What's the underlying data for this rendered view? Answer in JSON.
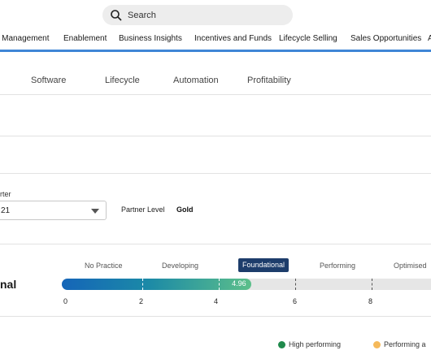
{
  "search": {
    "placeholder": "Search"
  },
  "nav": {
    "items": [
      "r Management",
      "Enablement",
      "Business Insights",
      "Incentives and Funds",
      "Lifecycle Selling",
      "Sales Opportunities",
      "A"
    ]
  },
  "subtabs": [
    "Software",
    "Lifecycle",
    "Automation",
    "Profitability"
  ],
  "filters": {
    "quarter_label": "rter",
    "quarter_value": "21",
    "partner_level_label": "Partner Level",
    "partner_level_value": "Gold"
  },
  "maturity": {
    "stages": [
      "No Practice",
      "Developing",
      "Foundational",
      "Performing",
      "Optimised"
    ],
    "active_stage": "Foundational",
    "row_label": "nal",
    "score": 4.96,
    "score_label": "4.96",
    "axis": {
      "min": 0,
      "max": 10,
      "ticks": [
        "0",
        "2",
        "4",
        "6",
        "8"
      ]
    }
  },
  "legend": {
    "items": [
      {
        "label": "High performing",
        "color": "#1f8a4c"
      },
      {
        "label": "Performing a",
        "color": "#f5b95a"
      }
    ]
  }
}
